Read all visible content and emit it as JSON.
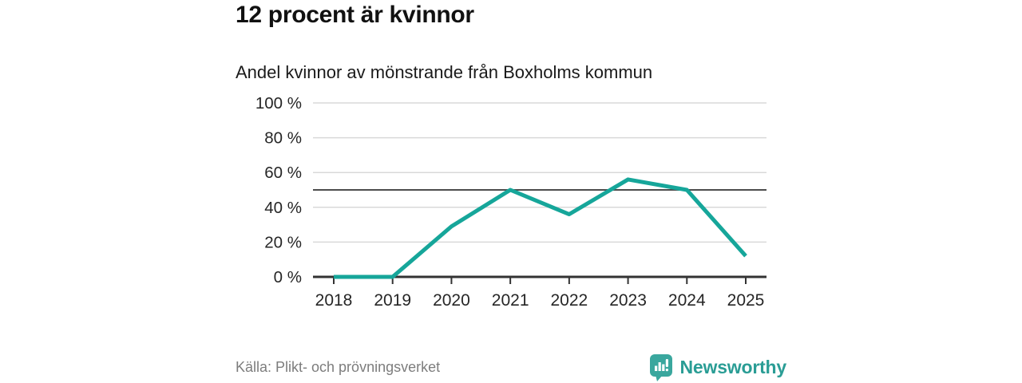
{
  "header": {
    "title": "12 procent är kvinnor",
    "subtitle": "Andel kvinnor av mönstrande från Boxholms kommun"
  },
  "footer": {
    "source": "Källa: Plikt- och prövningsverket",
    "brand": "Newsworthy",
    "logo_icon": "speech-bubble-bar-chart-exclamation"
  },
  "colors": {
    "line": "#16a69a",
    "grid": "#d9d9d9",
    "reference_line": "#4d4d4d",
    "axis": "#333333",
    "tick_label": "#262626",
    "source_text": "#7d7d7d",
    "brand_text": "#2a9d95",
    "logo_bg": "#3aa79e",
    "logo_glyph": "#ffffff"
  },
  "chart_data": {
    "type": "line",
    "title": "12 procent är kvinnor",
    "subtitle": "Andel kvinnor av mönstrande från Boxholms kommun",
    "categories": [
      "2018",
      "2019",
      "2020",
      "2021",
      "2022",
      "2023",
      "2024",
      "2025"
    ],
    "values": [
      0,
      0,
      29,
      50,
      36,
      56,
      50,
      12
    ],
    "unit": "%",
    "xlabel": "",
    "ylabel": "",
    "ylim": [
      0,
      100
    ],
    "yticks": [
      0,
      20,
      40,
      60,
      80,
      100
    ],
    "ytick_labels": [
      "0 %",
      "20 %",
      "40 %",
      "60 %",
      "80 %",
      "100 %"
    ],
    "reference_line": 50,
    "grid": "horizontal",
    "legend": "none",
    "line_color": "#16a69a",
    "source": "Källa: Plikt- och prövningsverket"
  }
}
